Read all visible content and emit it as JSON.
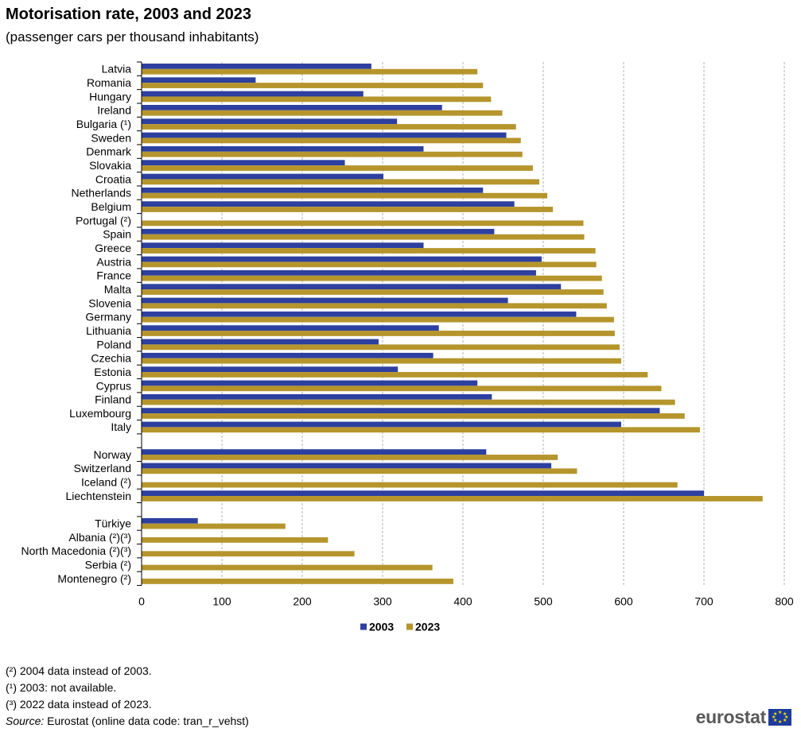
{
  "header": {
    "title": "Motorisation rate, 2003 and 2023",
    "subtitle": "(passenger cars per thousand inhabitants)"
  },
  "legend": [
    "2003",
    "2023"
  ],
  "notes": {
    "n1": "(²) 2004 data instead of 2003.",
    "n2": "(¹) 2003: not available.",
    "n3": "(³) 2022 data instead of 2023.",
    "source_label": "Source:",
    "source_text": " Eurostat (online data code: tran_r_vehst)"
  },
  "logo": {
    "text": "eurostat"
  },
  "chart_data": {
    "type": "bar",
    "orientation": "horizontal",
    "xlim": [
      0,
      800
    ],
    "xticks": [
      0,
      100,
      200,
      300,
      400,
      500,
      600,
      700,
      800
    ],
    "grid": true,
    "legend_position": "bottom",
    "colors": {
      "2003": "#2d40a0",
      "2023": "#b5952c"
    },
    "categories": [
      "Latvia",
      "Romania",
      "Hungary",
      "Ireland",
      "Bulgaria (¹)",
      "Sweden",
      "Denmark",
      "Slovakia",
      "Croatia",
      "Netherlands",
      "Belgium",
      "Portugal (²)",
      "Spain",
      "Greece",
      "Austria",
      "France",
      "Malta",
      "Slovenia",
      "Germany",
      "Lithuania",
      "Poland",
      "Czechia",
      "Estonia",
      "Cyprus",
      "Finland",
      "Luxembourg",
      "Italy",
      "",
      "Norway",
      "Switzerland",
      "Iceland (²)",
      "Liechtenstein",
      "",
      "Türkiye",
      "Albania (²)(³)",
      "North Macedonia (²)(³)",
      "Serbia (²)",
      "Montenegro (²)"
    ],
    "series": [
      {
        "name": "2003",
        "values": [
          286,
          142,
          276,
          374,
          318,
          454,
          351,
          253,
          301,
          425,
          464,
          null,
          439,
          351,
          498,
          491,
          522,
          456,
          541,
          370,
          295,
          363,
          319,
          418,
          436,
          645,
          597,
          null,
          429,
          510,
          null,
          700,
          null,
          70,
          null,
          null,
          null,
          null
        ]
      },
      {
        "name": "2023",
        "values": [
          418,
          425,
          435,
          449,
          466,
          472,
          474,
          487,
          495,
          505,
          512,
          550,
          551,
          565,
          566,
          573,
          575,
          579,
          588,
          589,
          595,
          597,
          630,
          647,
          664,
          676,
          695,
          null,
          518,
          542,
          667,
          773,
          null,
          179,
          232,
          265,
          362,
          388
        ]
      }
    ]
  }
}
